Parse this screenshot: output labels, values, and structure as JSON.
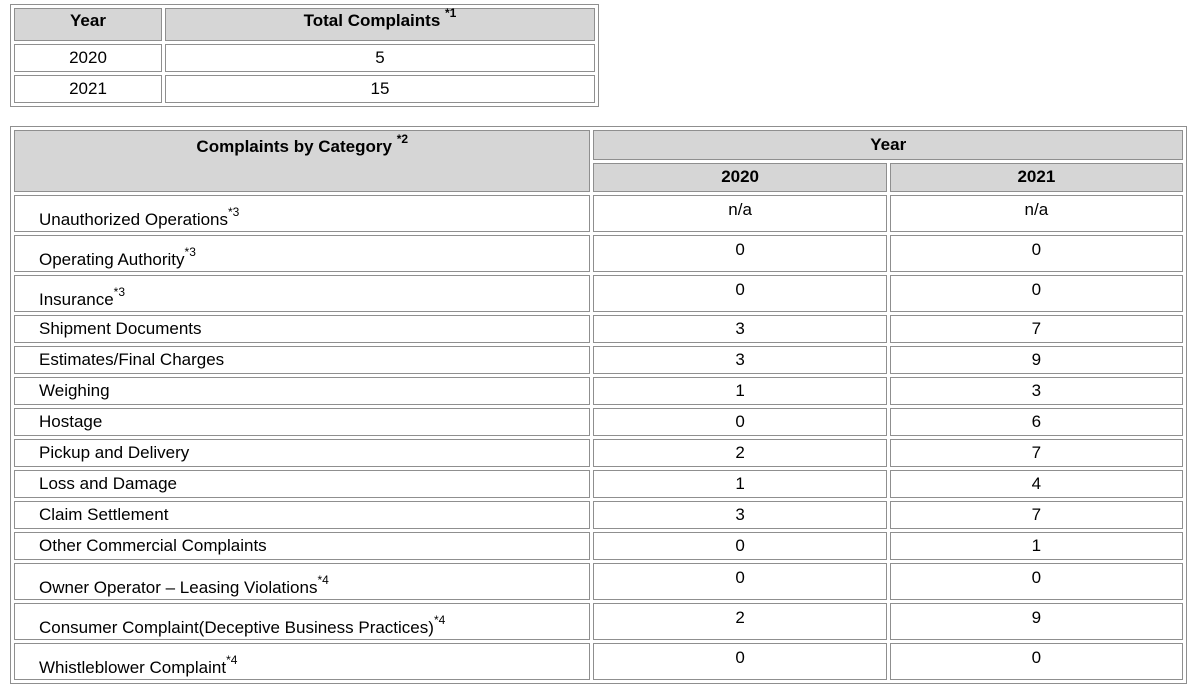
{
  "totals_table": {
    "header": {
      "year": "Year",
      "total": "Total Complaints",
      "total_note": "*1"
    },
    "rows": [
      {
        "year": "2020",
        "total": "5"
      },
      {
        "year": "2021",
        "total": "15"
      }
    ]
  },
  "category_table": {
    "header": {
      "category": "Complaints by Category",
      "category_note": "*2",
      "year": "Year",
      "years": [
        "2020",
        "2021"
      ]
    },
    "rows": [
      {
        "label": "Unauthorized Operations",
        "note": "*3",
        "y2020": "n/a",
        "y2021": "n/a"
      },
      {
        "label": "Operating Authority",
        "note": "*3",
        "y2020": "0",
        "y2021": "0"
      },
      {
        "label": "Insurance",
        "note": "*3",
        "y2020": "0",
        "y2021": "0"
      },
      {
        "label": "Shipment Documents",
        "note": "",
        "y2020": "3",
        "y2021": "7"
      },
      {
        "label": "Estimates/Final Charges",
        "note": "",
        "y2020": "3",
        "y2021": "9"
      },
      {
        "label": "Weighing",
        "note": "",
        "y2020": "1",
        "y2021": "3"
      },
      {
        "label": "Hostage",
        "note": "",
        "y2020": "0",
        "y2021": "6"
      },
      {
        "label": "Pickup and Delivery",
        "note": "",
        "y2020": "2",
        "y2021": "7"
      },
      {
        "label": "Loss and Damage",
        "note": "",
        "y2020": "1",
        "y2021": "4"
      },
      {
        "label": "Claim Settlement",
        "note": "",
        "y2020": "3",
        "y2021": "7"
      },
      {
        "label": "Other Commercial Complaints",
        "note": "",
        "y2020": "0",
        "y2021": "1"
      },
      {
        "label": "Owner Operator – Leasing Violations",
        "note": "*4",
        "y2020": "0",
        "y2021": "0"
      },
      {
        "label": "Consumer Complaint(Deceptive Business Practices)",
        "note": "*4",
        "y2020": "2",
        "y2021": "9"
      },
      {
        "label": "Whistleblower Complaint",
        "note": "*4",
        "y2020": "0",
        "y2021": "0"
      }
    ]
  }
}
